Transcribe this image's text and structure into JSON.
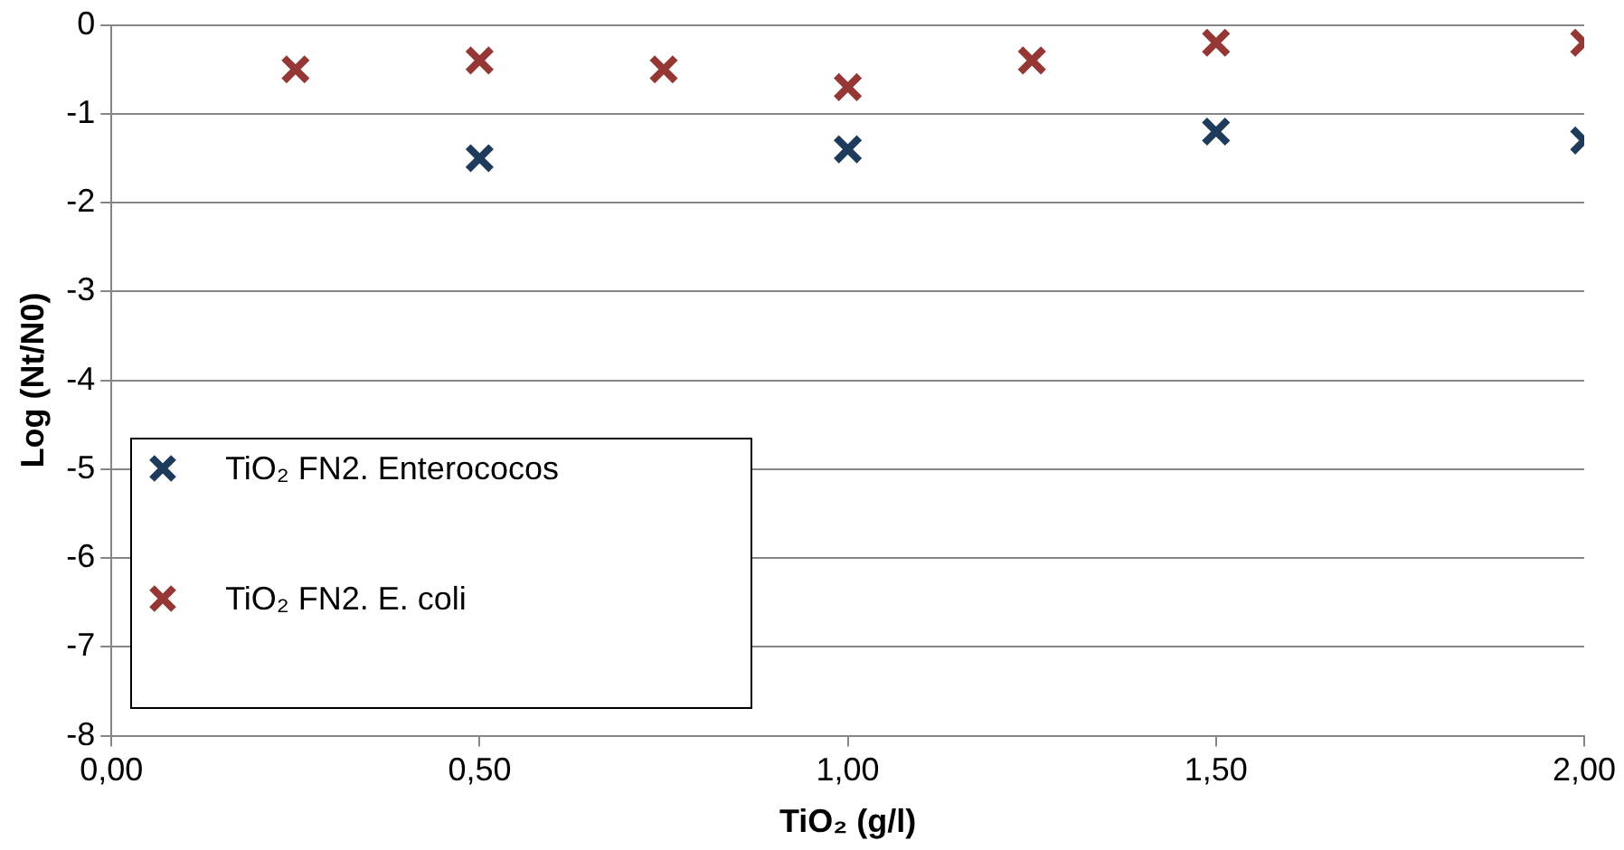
{
  "chart_data": {
    "type": "scatter",
    "xlabel": "TiO₂ (g/l)",
    "ylabel": "Log (Nt/N0)",
    "xlim": [
      0,
      2
    ],
    "ylim": [
      -8,
      0
    ],
    "xticks": [
      {
        "value": 0,
        "label": "0,00"
      },
      {
        "value": 0.5,
        "label": "0,50"
      },
      {
        "value": 1,
        "label": "1,00"
      },
      {
        "value": 1.5,
        "label": "1,50"
      },
      {
        "value": 2,
        "label": "2,00"
      }
    ],
    "yticks": [
      -8,
      -7,
      -6,
      -5,
      -4,
      -3,
      -2,
      -1,
      0
    ],
    "grid": "y",
    "legend": "bottom left",
    "marker": "cross",
    "series": [
      {
        "name": "TiO₂ FN2. Enterococos",
        "color": "#1f3b5c",
        "x": [
          0.5,
          1,
          1.5,
          2
        ],
        "values": [
          -1.5,
          -1.4,
          -1.2,
          -1.3
        ]
      },
      {
        "name": "TiO₂ FN2. E. coli",
        "color": "#953735",
        "x": [
          0.25,
          0.5,
          0.75,
          1,
          1.25,
          1.5,
          2
        ],
        "values": [
          -0.5,
          -0.4,
          -0.5,
          -0.7,
          -0.4,
          -0.2,
          -0.2
        ]
      }
    ]
  }
}
